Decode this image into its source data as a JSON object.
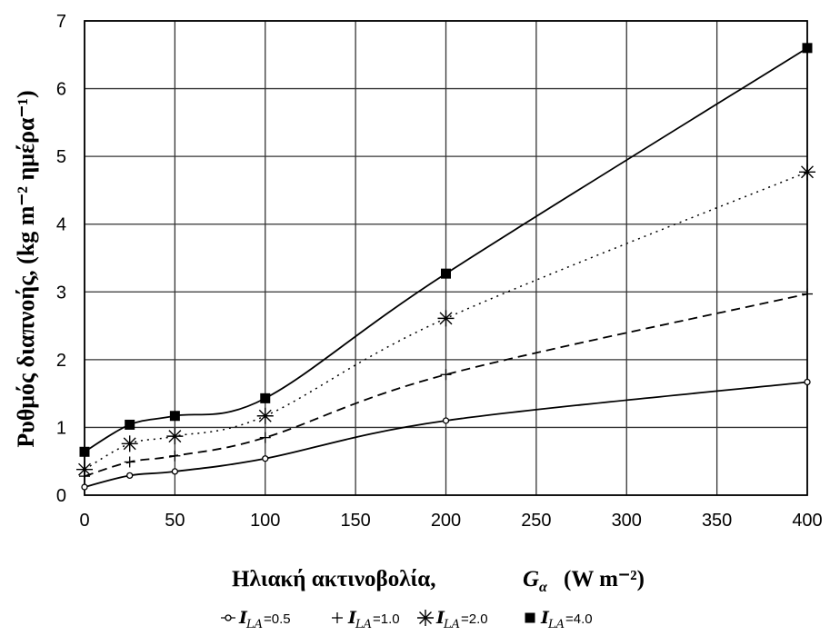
{
  "chart_data": {
    "type": "line",
    "ylabel": "Ρυθμός διαπνοής, (kg m⁻² ημέρα⁻¹)",
    "xlabel": "Ηλιακή ακτινοβολία,",
    "xlabel_symbol": "G",
    "xlabel_subscript": "α",
    "xlabel_unit": "(W m⁻²)",
    "x": [
      0,
      25,
      50,
      100,
      200,
      400
    ],
    "x_ticks": [
      "0",
      "50",
      "100",
      "150",
      "200",
      "250",
      "300",
      "350",
      "400"
    ],
    "y_ticks": [
      "0",
      "1",
      "2",
      "3",
      "4",
      "5",
      "6",
      "7"
    ],
    "xlim": [
      0,
      400
    ],
    "ylim": [
      0,
      7
    ],
    "grid": true,
    "legend_position": "bottom",
    "series": [
      {
        "symbol": "I",
        "subscript": "LA",
        "name": "=0.5",
        "marker": "open-circle",
        "line": "solid",
        "values": [
          0.12,
          0.29,
          0.35,
          0.54,
          1.1,
          1.67
        ]
      },
      {
        "symbol": "I",
        "subscript": "LA",
        "name": "=1.0",
        "marker": "plus",
        "line": "dashed",
        "values": [
          0.28,
          0.49,
          0.58,
          0.85,
          1.78,
          2.97
        ]
      },
      {
        "symbol": "I",
        "subscript": "LA",
        "name": "=2.0",
        "marker": "asterisk",
        "line": "dotted",
        "values": [
          0.38,
          0.76,
          0.87,
          1.17,
          2.61,
          4.77
        ]
      },
      {
        "symbol": "I",
        "subscript": "LA",
        "name": "=4.0",
        "marker": "filled-square",
        "line": "solid",
        "values": [
          0.64,
          1.04,
          1.17,
          1.43,
          3.27,
          6.6
        ]
      }
    ]
  }
}
